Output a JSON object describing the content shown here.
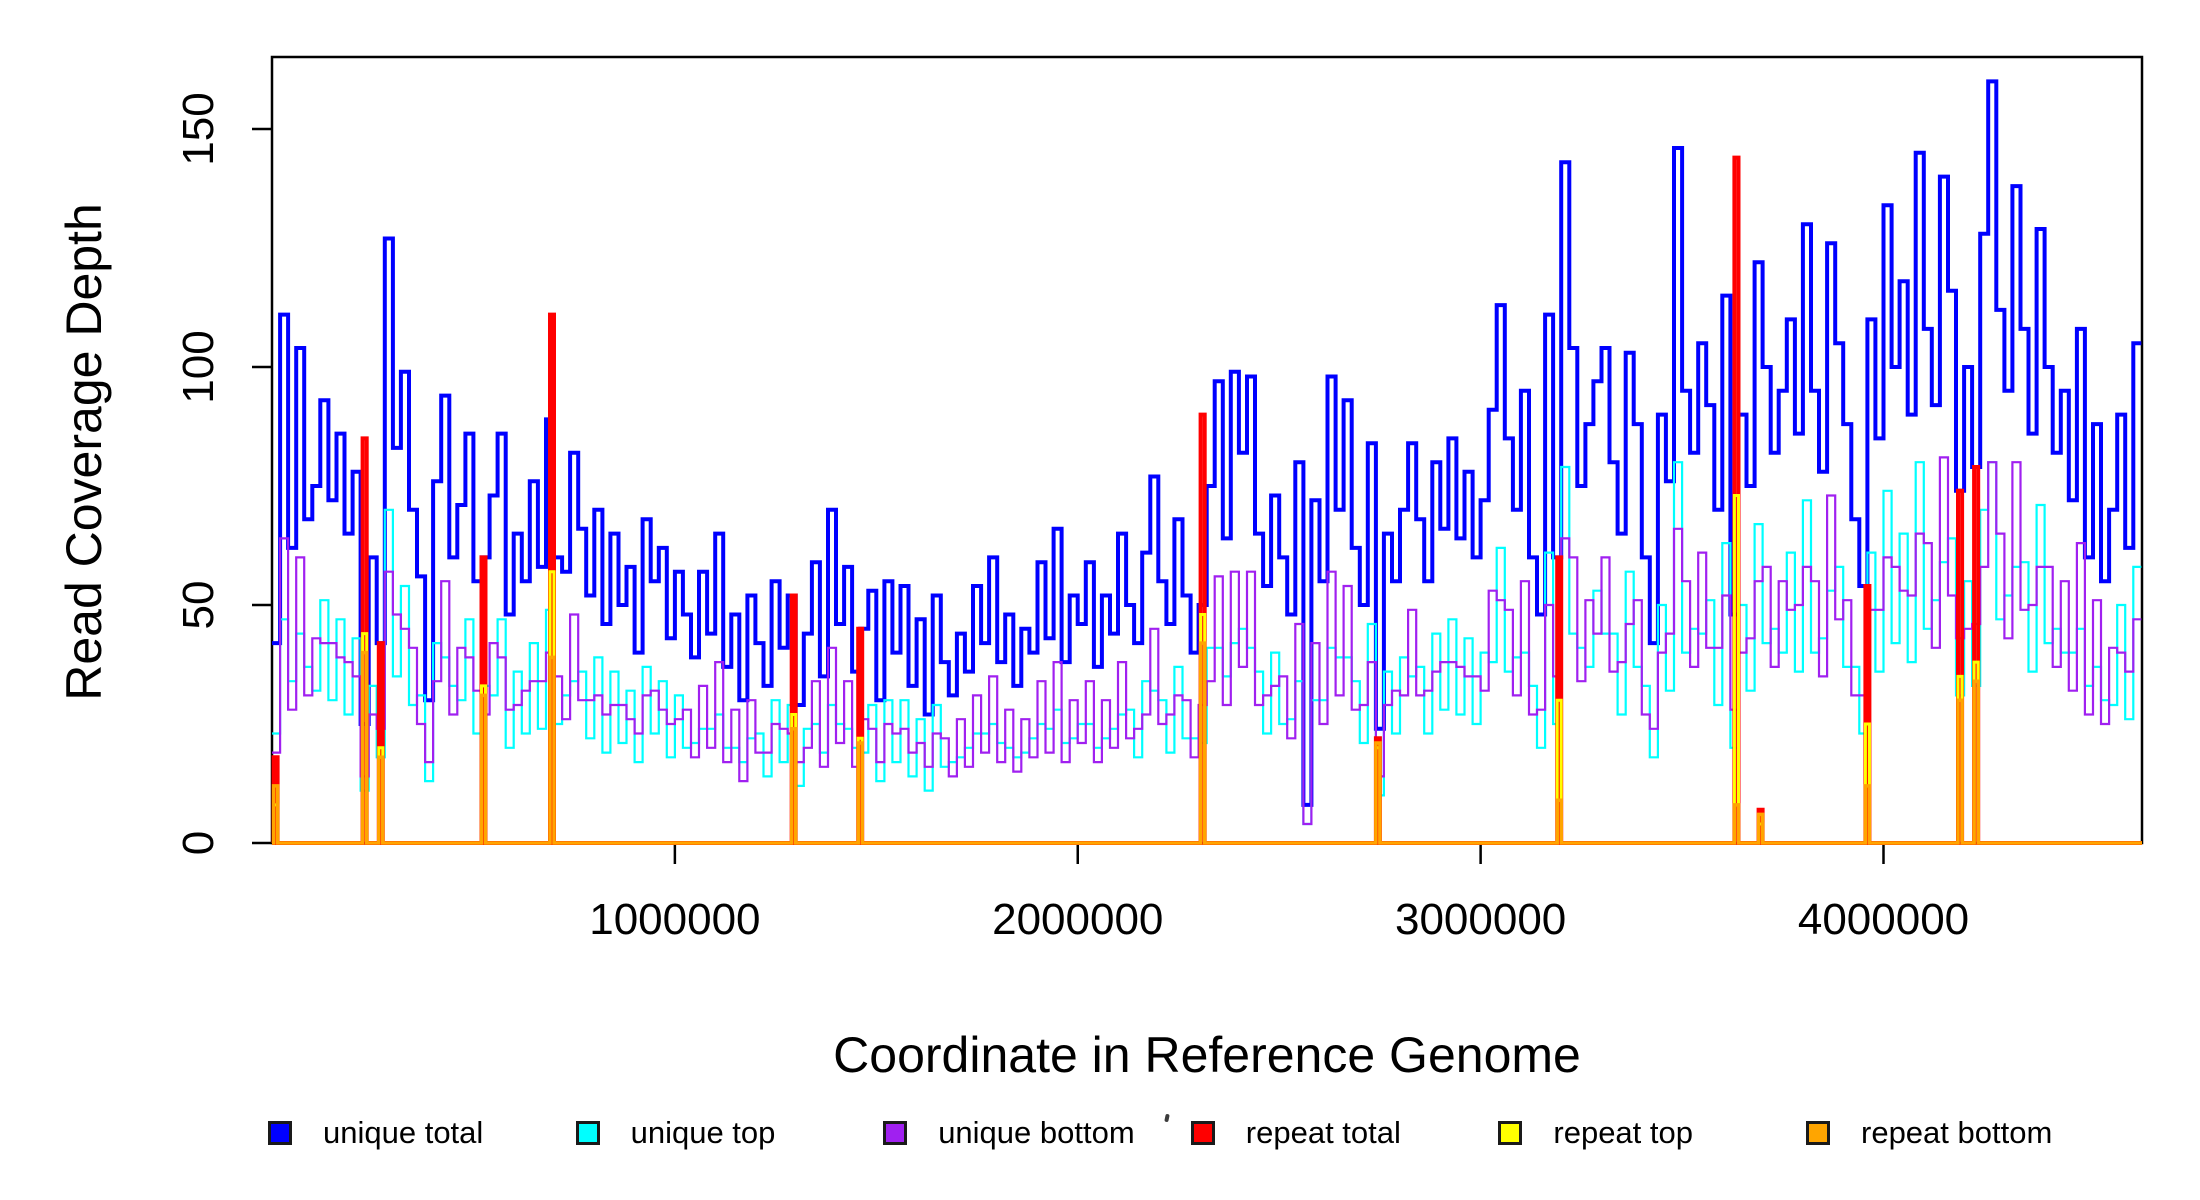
{
  "chart_data": {
    "type": "line",
    "subtype": "step-coverage-histogram",
    "title": "",
    "xlabel": "Coordinate in Reference Genome",
    "ylabel": "Read Coverage Depth",
    "xlim": [
      0,
      4641652
    ],
    "ylim": [
      0,
      165
    ],
    "grid": false,
    "legend_position": "bottom",
    "background": "#ffffff",
    "axis_color": "#000000",
    "x_axis": {
      "ticks": [
        {
          "v": 1000000,
          "label": "1000000"
        },
        {
          "v": 2000000,
          "label": "2000000"
        },
        {
          "v": 3000000,
          "label": "3000000"
        },
        {
          "v": 4000000,
          "label": "4000000"
        }
      ]
    },
    "y_axis": {
      "ticks": [
        {
          "v": 0,
          "label": "0"
        },
        {
          "v": 50,
          "label": "50"
        },
        {
          "v": 100,
          "label": "100"
        },
        {
          "v": 150,
          "label": "150"
        }
      ]
    },
    "bin_size_bp": 20000,
    "spike_width_bp": 10000,
    "series": [
      {
        "name": "unique total",
        "color": "#0000FF",
        "line_width": 4,
        "kind": "bins",
        "values": [
          42,
          111,
          62,
          104,
          68,
          75,
          93,
          72,
          86,
          65,
          78,
          25,
          60,
          42,
          127,
          83,
          99,
          70,
          56,
          30,
          76,
          94,
          60,
          71,
          86,
          55,
          60,
          73,
          86,
          48,
          65,
          55,
          76,
          58,
          89,
          60,
          57,
          82,
          66,
          52,
          70,
          46,
          65,
          50,
          58,
          40,
          68,
          55,
          62,
          43,
          57,
          48,
          39,
          57,
          44,
          65,
          37,
          48,
          30,
          52,
          42,
          33,
          55,
          41,
          52,
          29,
          44,
          59,
          35,
          70,
          46,
          58,
          36,
          45,
          53,
          30,
          55,
          40,
          54,
          33,
          47,
          27,
          52,
          38,
          31,
          44,
          36,
          54,
          42,
          60,
          38,
          48,
          33,
          45,
          40,
          59,
          43,
          66,
          38,
          52,
          46,
          59,
          37,
          52,
          44,
          65,
          50,
          42,
          61,
          77,
          55,
          46,
          68,
          52,
          40,
          50,
          75,
          97,
          64,
          99,
          82,
          98,
          65,
          54,
          73,
          60,
          48,
          80,
          8,
          72,
          55,
          98,
          70,
          93,
          62,
          50,
          84,
          24,
          65,
          55,
          70,
          84,
          68,
          55,
          80,
          66,
          85,
          64,
          78,
          60,
          72,
          91,
          113,
          85,
          70,
          95,
          60,
          48,
          111,
          60,
          143,
          104,
          75,
          88,
          97,
          104,
          80,
          65,
          103,
          88,
          60,
          42,
          90,
          76,
          146,
          95,
          82,
          105,
          92,
          70,
          115,
          48,
          90,
          75,
          122,
          100,
          82,
          95,
          110,
          86,
          130,
          95,
          78,
          126,
          105,
          88,
          68,
          54,
          110,
          85,
          134,
          100,
          118,
          90,
          145,
          108,
          92,
          140,
          116,
          74,
          100,
          79,
          128,
          160,
          112,
          95,
          138,
          108,
          86,
          129,
          100,
          82,
          95,
          72,
          108,
          60,
          88,
          55,
          70,
          90,
          62,
          105
        ]
      },
      {
        "name": "unique top",
        "color": "#00FFFF",
        "line_width": 2.2,
        "kind": "bins",
        "values": [
          23,
          47,
          34,
          44,
          37,
          32,
          51,
          30,
          47,
          27,
          43,
          11,
          33,
          18,
          70,
          35,
          54,
          29,
          31,
          13,
          42,
          39,
          33,
          30,
          47,
          23,
          33,
          31,
          47,
          20,
          36,
          23,
          42,
          24,
          49,
          25,
          31,
          34,
          36,
          22,
          39,
          19,
          36,
          21,
          32,
          17,
          37,
          23,
          34,
          18,
          31,
          20,
          21,
          24,
          24,
          27,
          20,
          20,
          17,
          22,
          23,
          14,
          30,
          17,
          29,
          12,
          24,
          25,
          19,
          29,
          25,
          24,
          20,
          19,
          29,
          13,
          30,
          17,
          30,
          14,
          26,
          11,
          29,
          16,
          17,
          18,
          20,
          23,
          23,
          25,
          21,
          20,
          18,
          19,
          22,
          25,
          24,
          28,
          21,
          22,
          25,
          25,
          20,
          22,
          24,
          27,
          28,
          18,
          34,
          32,
          30,
          19,
          37,
          22,
          22,
          21,
          41,
          41,
          35,
          42,
          45,
          41,
          36,
          23,
          40,
          25,
          26,
          34,
          4,
          30,
          30,
          41,
          39,
          39,
          34,
          21,
          46,
          10,
          36,
          23,
          39,
          35,
          37,
          23,
          44,
          28,
          47,
          27,
          43,
          25,
          40,
          38,
          62,
          36,
          39,
          40,
          33,
          20,
          61,
          25,
          79,
          44,
          41,
          37,
          53,
          44,
          44,
          27,
          57,
          37,
          33,
          18,
          50,
          32,
          80,
          40,
          45,
          44,
          51,
          29,
          63,
          20,
          50,
          32,
          67,
          42,
          45,
          40,
          61,
          36,
          72,
          40,
          43,
          53,
          58,
          37,
          37,
          23,
          61,
          36,
          74,
          42,
          65,
          38,
          80,
          45,
          51,
          59,
          64,
          31,
          55,
          33,
          70,
          80,
          47,
          52,
          58,
          59,
          36,
          71,
          42,
          45,
          40,
          40,
          45,
          33,
          37,
          30,
          29,
          50,
          26,
          58
        ]
      },
      {
        "name": "unique bottom",
        "color": "#A020F0",
        "line_width": 2.2,
        "kind": "bins",
        "values": [
          19,
          64,
          28,
          60,
          31,
          43,
          42,
          42,
          39,
          38,
          35,
          14,
          27,
          24,
          57,
          48,
          45,
          41,
          25,
          17,
          34,
          55,
          27,
          41,
          39,
          32,
          27,
          42,
          39,
          28,
          29,
          32,
          34,
          34,
          40,
          35,
          26,
          48,
          30,
          30,
          31,
          27,
          29,
          29,
          26,
          23,
          31,
          32,
          28,
          25,
          26,
          28,
          18,
          33,
          20,
          38,
          17,
          28,
          13,
          30,
          19,
          19,
          25,
          24,
          23,
          17,
          20,
          34,
          16,
          41,
          21,
          34,
          16,
          26,
          24,
          17,
          25,
          23,
          24,
          19,
          21,
          16,
          23,
          22,
          14,
          26,
          16,
          31,
          19,
          35,
          17,
          28,
          15,
          26,
          18,
          34,
          19,
          38,
          17,
          30,
          21,
          34,
          17,
          30,
          20,
          38,
          22,
          24,
          27,
          45,
          25,
          27,
          31,
          30,
          18,
          29,
          34,
          56,
          29,
          57,
          37,
          57,
          29,
          31,
          33,
          35,
          22,
          46,
          4,
          42,
          25,
          57,
          31,
          54,
          28,
          29,
          38,
          14,
          29,
          32,
          31,
          49,
          31,
          32,
          36,
          38,
          38,
          37,
          35,
          35,
          32,
          53,
          51,
          49,
          31,
          55,
          27,
          28,
          50,
          35,
          64,
          60,
          34,
          51,
          44,
          60,
          36,
          38,
          46,
          51,
          27,
          24,
          40,
          44,
          66,
          55,
          37,
          61,
          41,
          41,
          52,
          28,
          40,
          43,
          55,
          58,
          37,
          55,
          49,
          50,
          58,
          55,
          35,
          73,
          47,
          51,
          31,
          31,
          49,
          49,
          60,
          58,
          53,
          52,
          65,
          63,
          41,
          81,
          52,
          43,
          45,
          46,
          58,
          80,
          65,
          43,
          80,
          49,
          50,
          58,
          58,
          37,
          55,
          32,
          63,
          27,
          51,
          25,
          41,
          40,
          36,
          47
        ]
      },
      {
        "name": "repeat total",
        "color": "#FF0000",
        "line_width": 4,
        "kind": "spikes",
        "baseline": 0,
        "spikes": [
          [
            4000,
            18
          ],
          [
            225000,
            85
          ],
          [
            265000,
            42
          ],
          [
            520000,
            60
          ],
          [
            690000,
            111
          ],
          [
            1290000,
            52
          ],
          [
            1455000,
            45
          ],
          [
            2305000,
            90
          ],
          [
            2740000,
            22
          ],
          [
            3190000,
            60
          ],
          [
            3630000,
            144
          ],
          [
            3690000,
            7
          ],
          [
            3955000,
            54
          ],
          [
            4185000,
            74
          ],
          [
            4225000,
            79
          ]
        ]
      },
      {
        "name": "repeat top",
        "color": "#FFFF00",
        "line_width": 3,
        "kind": "spikes",
        "baseline": 0,
        "spikes": [
          [
            4000,
            8
          ],
          [
            225000,
            44
          ],
          [
            265000,
            20
          ],
          [
            520000,
            33
          ],
          [
            690000,
            57
          ],
          [
            1290000,
            27
          ],
          [
            1455000,
            22
          ],
          [
            2305000,
            48
          ],
          [
            2740000,
            20
          ],
          [
            3190000,
            30
          ],
          [
            3630000,
            73
          ],
          [
            3690000,
            4
          ],
          [
            3955000,
            25
          ],
          [
            4185000,
            35
          ],
          [
            4225000,
            38
          ]
        ]
      },
      {
        "name": "repeat bottom",
        "color": "#FFA500",
        "line_width": 3.5,
        "kind": "spikes",
        "baseline": 0,
        "spikes": [
          [
            4000,
            12
          ],
          [
            225000,
            40
          ],
          [
            265000,
            18
          ],
          [
            520000,
            31
          ],
          [
            690000,
            39
          ],
          [
            1290000,
            24
          ],
          [
            1455000,
            21
          ],
          [
            2305000,
            42
          ],
          [
            2740000,
            21
          ],
          [
            3190000,
            9
          ],
          [
            3630000,
            8
          ],
          [
            3690000,
            6
          ],
          [
            3955000,
            12
          ],
          [
            4185000,
            30
          ],
          [
            4225000,
            34
          ]
        ]
      }
    ],
    "legend": [
      {
        "label": "unique total",
        "color": "#0000FF"
      },
      {
        "label": "unique top",
        "color": "#00FFFF"
      },
      {
        "label": "unique bottom",
        "color": "#A020F0"
      },
      {
        "label": "repeat total",
        "color": "#FF0000"
      },
      {
        "label": "repeat top",
        "color": "#FFFF00"
      },
      {
        "label": "repeat bottom",
        "color": "#FFA500"
      }
    ]
  }
}
